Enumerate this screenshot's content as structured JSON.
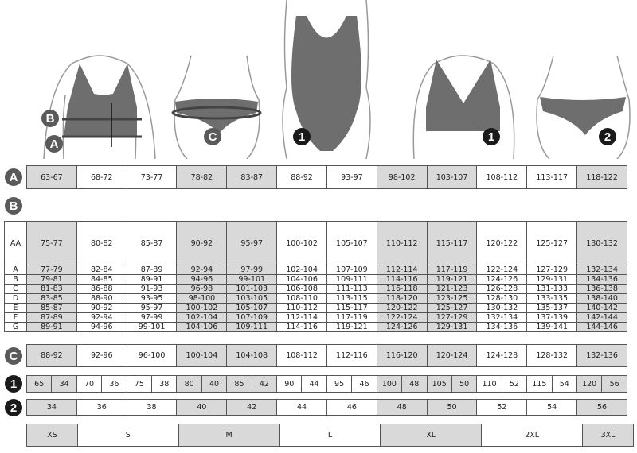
{
  "badges": {
    "a": "A",
    "b": "B",
    "c": "C",
    "one": "1",
    "two": "2"
  },
  "shaded_columns": [
    0,
    3,
    4,
    7,
    8,
    11
  ],
  "shade_color": "#d9d9d9",
  "table_a": [
    "63-67",
    "68-72",
    "73-77",
    "78-82",
    "83-87",
    "88-92",
    "93-97",
    "98-102",
    "103-107",
    "108-112",
    "113-117",
    "118-122"
  ],
  "table_b": [
    {
      "cup": "AA",
      "values": [
        "75-77",
        "80-82",
        "85-87",
        "90-92",
        "95-97",
        "100-102",
        "105-107",
        "110-112",
        "115-117",
        "120-122",
        "125-127",
        "130-132"
      ]
    },
    {
      "cup": "A",
      "values": [
        "77-79",
        "82-84",
        "87-89",
        "92-94",
        "97-99",
        "102-104",
        "107-109",
        "112-114",
        "117-119",
        "122-124",
        "127-129",
        "132-134"
      ]
    },
    {
      "cup": "B",
      "values": [
        "79-81",
        "84-85",
        "89-91",
        "94-96",
        "99-101",
        "104-106",
        "109-111",
        "114-116",
        "119-121",
        "124-126",
        "129-131",
        "134-136"
      ]
    },
    {
      "cup": "C",
      "values": [
        "81-83",
        "86-88",
        "91-93",
        "96-98",
        "101-103",
        "106-108",
        "111-113",
        "116-118",
        "121-123",
        "126-128",
        "131-133",
        "136-138"
      ]
    },
    {
      "cup": "D",
      "values": [
        "83-85",
        "88-90",
        "93-95",
        "98-100",
        "103-105",
        "108-110",
        "113-115",
        "118-120",
        "123-125",
        "128-130",
        "133-135",
        "138-140"
      ]
    },
    {
      "cup": "E",
      "values": [
        "85-87",
        "90-92",
        "95-97",
        "100-102",
        "105-107",
        "110-112",
        "115-117",
        "120-122",
        "125-127",
        "130-132",
        "135-137",
        "140-142"
      ]
    },
    {
      "cup": "F",
      "values": [
        "87-89",
        "92-94",
        "97-99",
        "102-104",
        "107-109",
        "112-114",
        "117-119",
        "122-124",
        "127-129",
        "132-134",
        "137-139",
        "142-144"
      ]
    },
    {
      "cup": "G",
      "values": [
        "89-91",
        "94-96",
        "99-101",
        "104-106",
        "109-111",
        "114-116",
        "119-121",
        "124-126",
        "129-131",
        "134-136",
        "139-141",
        "144-146"
      ]
    }
  ],
  "table_c": [
    "88-92",
    "92-96",
    "96-100",
    "100-104",
    "104-108",
    "108-112",
    "112-116",
    "116-120",
    "120-124",
    "124-128",
    "128-132",
    "132-136"
  ],
  "table_1": [
    [
      "65",
      "34"
    ],
    [
      "70",
      "36"
    ],
    [
      "75",
      "38"
    ],
    [
      "80",
      "40"
    ],
    [
      "85",
      "42"
    ],
    [
      "90",
      "44"
    ],
    [
      "95",
      "46"
    ],
    [
      "100",
      "48"
    ],
    [
      "105",
      "50"
    ],
    [
      "110",
      "52"
    ],
    [
      "115",
      "54"
    ],
    [
      "120",
      "56"
    ]
  ],
  "table_2": [
    "34",
    "36",
    "38",
    "40",
    "42",
    "44",
    "46",
    "48",
    "50",
    "52",
    "54",
    "56"
  ],
  "sizes": [
    {
      "label": "XS",
      "span": 1,
      "shaded": true
    },
    {
      "label": "S",
      "span": 2,
      "shaded": false
    },
    {
      "label": "M",
      "span": 2,
      "shaded": true
    },
    {
      "label": "L",
      "span": 2,
      "shaded": false
    },
    {
      "label": "XL",
      "span": 2,
      "shaded": true
    },
    {
      "label": "2XL",
      "span": 2,
      "shaded": false
    },
    {
      "label": "3XL",
      "span": 1,
      "shaded": true
    }
  ]
}
